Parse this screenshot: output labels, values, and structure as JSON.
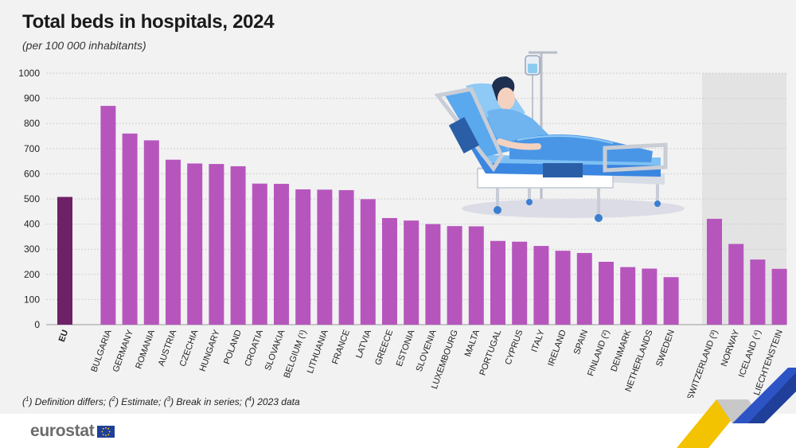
{
  "title": "Total beds in hospitals, 2024",
  "subtitle": "(per 100 000 inhabitants)",
  "footnote": [
    {
      "n": "1",
      "text": " Definition differs; "
    },
    {
      "n": "2",
      "text": " Estimate; "
    },
    {
      "n": "3",
      "text": " Break in series; "
    },
    {
      "n": "4",
      "text": " 2023 data"
    }
  ],
  "logo": {
    "text": "eurostat",
    "flag": "eu-flag-icon"
  },
  "colors": {
    "eu_bar": "#6e2167",
    "bar": "#b656bd",
    "efta_band": "#e3e3e3",
    "grid": "#cfcfcf",
    "background": "#f2f2f2"
  },
  "chart_data": {
    "type": "bar",
    "title": "Total beds in hospitals, 2024",
    "ylabel": "",
    "xlabel": "",
    "ylim": [
      0,
      1000
    ],
    "yticks": [
      0,
      100,
      200,
      300,
      400,
      500,
      600,
      700,
      800,
      900,
      1000
    ],
    "grid": true,
    "groups": [
      {
        "name": "eu",
        "highlight": "none",
        "categories": [
          {
            "label": "EU",
            "value": 508,
            "bold": true
          }
        ]
      },
      {
        "name": "member-states",
        "highlight": "none",
        "categories": [
          {
            "label": "BULGARIA",
            "value": 870
          },
          {
            "label": "GERMANY",
            "value": 760
          },
          {
            "label": "ROMANIA",
            "value": 733
          },
          {
            "label": "AUSTRIA",
            "value": 656
          },
          {
            "label": "CZECHIA",
            "value": 641
          },
          {
            "label": "HUNGARY",
            "value": 639
          },
          {
            "label": "POLAND",
            "value": 630
          },
          {
            "label": "CROATIA",
            "value": 561
          },
          {
            "label": "SLOVAKIA",
            "value": 560
          },
          {
            "label": "BELGIUM (¹)",
            "value": 538
          },
          {
            "label": "LITHUANIA",
            "value": 537
          },
          {
            "label": "FRANCE",
            "value": 535
          },
          {
            "label": "LATVIA",
            "value": 499
          },
          {
            "label": "GREECE",
            "value": 424
          },
          {
            "label": "ESTONIA",
            "value": 414
          },
          {
            "label": "SLOVENIA",
            "value": 400
          },
          {
            "label": "LUXEMBOURG",
            "value": 392
          },
          {
            "label": "MALTA",
            "value": 391
          },
          {
            "label": "PORTUGAL",
            "value": 333
          },
          {
            "label": "CYPRUS",
            "value": 330
          },
          {
            "label": "ITALY",
            "value": 313
          },
          {
            "label": "IRELAND",
            "value": 294
          },
          {
            "label": "SPAIN",
            "value": 285
          },
          {
            "label": "FINLAND (²)",
            "value": 250
          },
          {
            "label": "DENMARK",
            "value": 229
          },
          {
            "label": "NETHERLANDS",
            "value": 223
          },
          {
            "label": "SWEDEN",
            "value": 189
          }
        ]
      },
      {
        "name": "efta",
        "highlight": "shaded",
        "categories": [
          {
            "label": "SWITZERLAND (³)",
            "value": 421
          },
          {
            "label": "NORWAY",
            "value": 321
          },
          {
            "label": "ICELAND (⁴)",
            "value": 259
          },
          {
            "label": "LIECHTENSTEIN",
            "value": 222
          }
        ]
      }
    ]
  },
  "illustration": "patient-in-hospital-bed-icon"
}
